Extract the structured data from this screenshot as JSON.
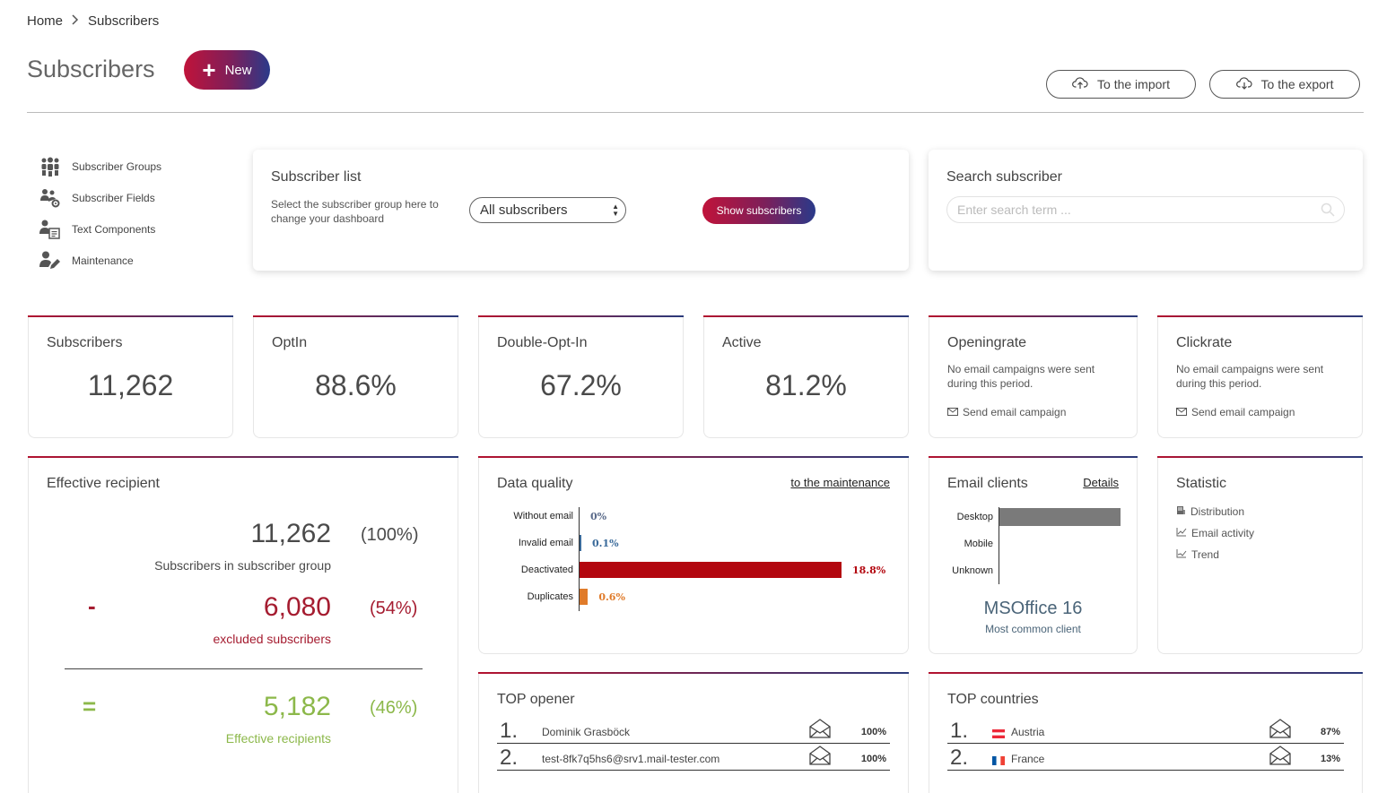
{
  "breadcrumb": {
    "home": "Home",
    "separator": ">",
    "current": "Subscribers"
  },
  "header": {
    "title": "Subscribers",
    "new_label": "New",
    "import_label": "To the import",
    "export_label": "To the export"
  },
  "sidebar": {
    "items": [
      {
        "label": "Subscriber Groups",
        "icon": "users-group-icon"
      },
      {
        "label": "Subscriber Fields",
        "icon": "users-settings-icon"
      },
      {
        "label": "Text Components",
        "icon": "user-text-icon"
      },
      {
        "label": "Maintenance",
        "icon": "user-edit-icon"
      }
    ]
  },
  "subscriber_list": {
    "title": "Subscriber list",
    "description": "Select the subscriber group here to change your dashboard",
    "selected_group": "All subscribers",
    "button_label": "Show subscribers"
  },
  "search": {
    "title": "Search subscriber",
    "placeholder": "Enter search term ..."
  },
  "stats": {
    "subscribers": {
      "label": "Subscribers",
      "value": "11,262"
    },
    "optin": {
      "label": "OptIn",
      "value": "88.6%"
    },
    "double_optin": {
      "label": "Double-Opt-In",
      "value": "67.2%"
    },
    "active": {
      "label": "Active",
      "value": "81.2%"
    },
    "openingrate": {
      "label": "Openingrate",
      "note": "No email campaigns were sent during this period.",
      "link": "Send email campaign"
    },
    "clickrate": {
      "label": "Clickrate",
      "note": "No email campaigns were sent during this period.",
      "link": "Send email campaign"
    }
  },
  "effective": {
    "title": "Effective recipient",
    "total": {
      "value": "11,262",
      "pct": "(100%)",
      "label": "Subscribers in subscriber group"
    },
    "excluded": {
      "sign": "-",
      "value": "6,080",
      "pct": "(54%)",
      "label": "excluded subscribers"
    },
    "result": {
      "sign": "=",
      "value": "5,182",
      "pct": "(46%)",
      "label": "Effective recipients"
    },
    "colors": {
      "total": "#4a4a4a",
      "excluded": "#a51c30",
      "result": "#8cb84a"
    }
  },
  "data_quality": {
    "title": "Data quality",
    "link": "to the maintenance",
    "rows": [
      {
        "label": "Without email",
        "value": 0,
        "display": "0%",
        "color": "#5a6a8a"
      },
      {
        "label": "Invalid email",
        "value": 0.1,
        "display": "0.1%",
        "color": "#3a6a9a"
      },
      {
        "label": "Deactivated",
        "value": 18.8,
        "display": "18.8%",
        "color": "#b3070f"
      },
      {
        "label": "Duplicates",
        "value": 0.6,
        "display": "0.6%",
        "color": "#e07b2a"
      }
    ]
  },
  "email_clients": {
    "title": "Email clients",
    "link": "Details",
    "rows": [
      {
        "label": "Desktop",
        "value": 100
      },
      {
        "label": "Mobile",
        "value": 0
      },
      {
        "label": "Unknown",
        "value": 0
      }
    ],
    "top_client": "MSOffice 16",
    "top_client_label": "Most common client"
  },
  "statistic": {
    "title": "Statistic",
    "links": [
      {
        "label": "Distribution",
        "icon": "distribution-icon"
      },
      {
        "label": "Email activity",
        "icon": "activity-chart-icon"
      },
      {
        "label": "Trend",
        "icon": "trend-chart-icon"
      }
    ]
  },
  "top_opener": {
    "title": "TOP opener",
    "rows": [
      {
        "rank": "1.",
        "name": "Dominik Grasböck",
        "pct": "100%"
      },
      {
        "rank": "2.",
        "name": "test-8fk7q5hs6@srv1.mail-tester.com",
        "pct": "100%"
      }
    ]
  },
  "top_countries": {
    "title": "TOP countries",
    "rows": [
      {
        "rank": "1.",
        "name": "Austria",
        "pct": "87%",
        "flag": "austria-flag-icon"
      },
      {
        "rank": "2.",
        "name": "France",
        "pct": "13%",
        "flag": "france-flag-icon"
      }
    ]
  }
}
